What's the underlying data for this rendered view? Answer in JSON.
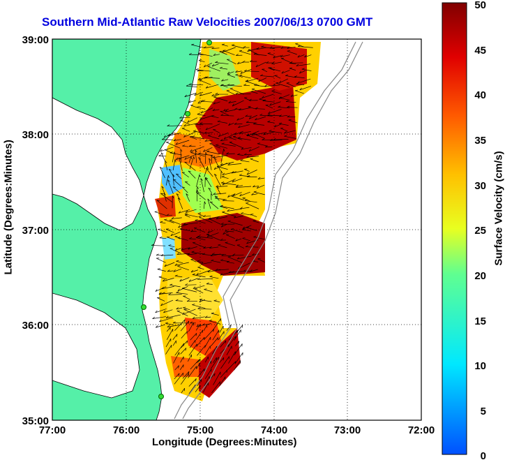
{
  "title": "Southern Mid-Atlantic Raw Velocities 2007/06/13 0700 GMT",
  "chart_data": {
    "type": "heatmap",
    "title": "Southern Mid-Atlantic Raw Velocities 2007/06/13 0700 GMT",
    "xlabel": "Longitude (Degrees:Minutes)",
    "ylabel": "Latitude (Degrees:Minutes)",
    "colorbar_label": "Surface Velocity (cm/s)",
    "x_ticks": [
      "77:00",
      "76:00",
      "75:00",
      "74:00",
      "73:00",
      "72:00"
    ],
    "y_ticks": [
      "39:00",
      "38:00",
      "37:00",
      "36:00",
      "35:00"
    ],
    "colorbar_ticks": [
      "50",
      "45",
      "40",
      "35",
      "30",
      "25",
      "20",
      "15",
      "10",
      "5",
      "0"
    ],
    "xlim": [
      -77,
      -72
    ],
    "ylim": [
      35,
      39
    ],
    "clim": [
      0,
      50
    ],
    "grid": true,
    "colormap": "jet",
    "land_color": "#55f0a8"
  }
}
